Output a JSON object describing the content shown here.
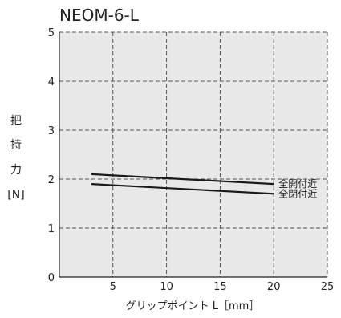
{
  "chart_data": {
    "type": "line",
    "title": "NEOM-6-L",
    "xlabel": "グリップポイント L［mm］",
    "ylabel_chars": [
      "把",
      "持",
      "力",
      "[N]"
    ],
    "xlim": [
      0,
      25
    ],
    "ylim": [
      0,
      5
    ],
    "x_ticks": [
      5,
      10,
      15,
      20,
      25
    ],
    "y_ticks": [
      0,
      1,
      2,
      3,
      4,
      5
    ],
    "grid": true,
    "series": [
      {
        "name": "全開付近",
        "x": [
          3,
          20
        ],
        "y": [
          2.1,
          1.9
        ]
      },
      {
        "name": "全閉付近",
        "x": [
          3,
          20
        ],
        "y": [
          1.9,
          1.7
        ]
      }
    ],
    "colors": {
      "background": "#e8e8e8",
      "line": "#1a1a1a",
      "grid": "#555555"
    }
  }
}
